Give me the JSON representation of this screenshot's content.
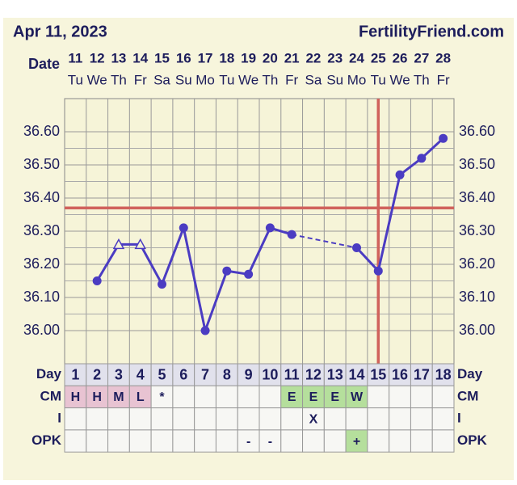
{
  "chart_data": {
    "type": "line",
    "title": "Apr 11, 2023",
    "site": "FertilityFriend.com",
    "date_label": "Date",
    "dates": [
      "11",
      "12",
      "13",
      "14",
      "15",
      "16",
      "17",
      "18",
      "19",
      "20",
      "21",
      "22",
      "23",
      "24",
      "25",
      "26",
      "27",
      "28"
    ],
    "weekdays": [
      "Tu",
      "We",
      "Th",
      "Fr",
      "Sa",
      "Su",
      "Mo",
      "Tu",
      "We",
      "Th",
      "Fr",
      "Sa",
      "Su",
      "Mo",
      "Tu",
      "We",
      "Th",
      "Fr"
    ],
    "x": [
      1,
      2,
      3,
      4,
      5,
      6,
      7,
      8,
      9,
      10,
      11,
      12,
      13,
      14,
      15,
      16,
      17,
      18
    ],
    "xlim": [
      0.5,
      18.5
    ],
    "values": [
      null,
      36.15,
      36.26,
      36.26,
      36.14,
      36.31,
      36.0,
      36.18,
      36.17,
      36.31,
      36.29,
      null,
      null,
      36.25,
      36.18,
      36.47,
      36.52,
      36.58
    ],
    "markers": [
      null,
      "circle",
      "triangle",
      "triangle",
      "circle",
      "circle",
      "circle",
      "circle",
      "circle",
      "circle",
      "circle",
      null,
      null,
      "circle",
      "circle",
      "circle",
      "circle",
      "circle"
    ],
    "color": "#4b3cc2",
    "ylim": [
      35.9,
      36.7
    ],
    "yticks": [
      {
        "value": 36.0,
        "label": "36.00"
      },
      {
        "value": 36.1,
        "label": "36.10"
      },
      {
        "value": 36.2,
        "label": "36.20"
      },
      {
        "value": 36.3,
        "label": "36.30"
      },
      {
        "value": 36.4,
        "label": "36.40"
      },
      {
        "value": 36.5,
        "label": "36.50"
      },
      {
        "value": 36.6,
        "label": "36.60"
      }
    ],
    "grid": true,
    "coverline": 36.37,
    "ovulation_x": 15,
    "reference_color": "#d0625c",
    "table": {
      "rows": [
        {
          "label": "Day",
          "cells": [
            1,
            2,
            3,
            4,
            5,
            6,
            7,
            8,
            9,
            10,
            11,
            12,
            13,
            14,
            15,
            16,
            17,
            18
          ]
        },
        {
          "label": "CM",
          "cells": [
            "H",
            "H",
            "M",
            "L",
            "*",
            null,
            null,
            null,
            null,
            null,
            "E",
            "E",
            "E",
            "W",
            null,
            null,
            null,
            null
          ],
          "colors": [
            "#e8c3d2",
            "#e8c3d2",
            "#e8c3d2",
            "#e8c3d2",
            null,
            null,
            null,
            null,
            null,
            null,
            "#b5df9c",
            "#b5df9c",
            "#b5df9c",
            "#b5df9c",
            null,
            null,
            null,
            null
          ]
        },
        {
          "label": "I",
          "cells": [
            null,
            null,
            null,
            null,
            null,
            null,
            null,
            null,
            null,
            null,
            null,
            "X",
            null,
            null,
            null,
            null,
            null,
            null
          ]
        },
        {
          "label": "OPK",
          "cells": [
            null,
            null,
            null,
            null,
            null,
            null,
            null,
            null,
            "-",
            "-",
            null,
            null,
            null,
            "+",
            null,
            null,
            null,
            null
          ],
          "colors": [
            null,
            null,
            null,
            null,
            null,
            null,
            null,
            null,
            null,
            null,
            null,
            null,
            null,
            "#b5df9c",
            null,
            null,
            null,
            null
          ]
        }
      ]
    }
  }
}
